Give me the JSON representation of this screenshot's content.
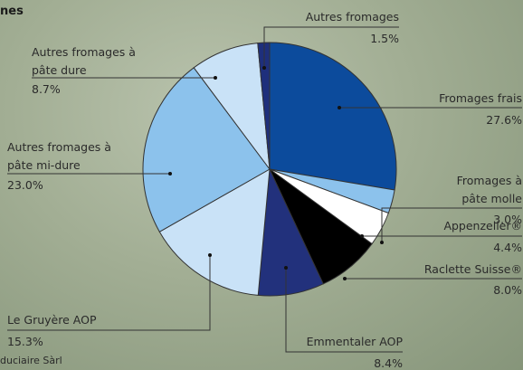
{
  "chart_data": {
    "type": "pie",
    "title": "nes",
    "source": "duciaire Sàrl",
    "categories": [
      "Fromages frais",
      "Fromages à pâte molle",
      "Appenzeller®",
      "Raclette Suisse®",
      "Emmentaler AOP",
      "Le Gruyère AOP",
      "Autres fromages à pâte mi-dure",
      "Autres fromages à pâte dure",
      "Autres fromages"
    ],
    "values": [
      27.6,
      3.0,
      4.4,
      8.0,
      8.4,
      15.3,
      23.0,
      8.7,
      1.5
    ],
    "value_labels": [
      "27.6%",
      "3.0%",
      "4.4%",
      "8.0%",
      "8.4%",
      "15.3%",
      "23.0%",
      "8.7%",
      "1.5%"
    ],
    "colors": [
      "#0c4b9c",
      "#8cc2ec",
      "#ffffff",
      "#000000",
      "#22317c",
      "#c9e2f7",
      "#8cc2ec",
      "#c9e2f7",
      "#1e2f7c"
    ]
  }
}
